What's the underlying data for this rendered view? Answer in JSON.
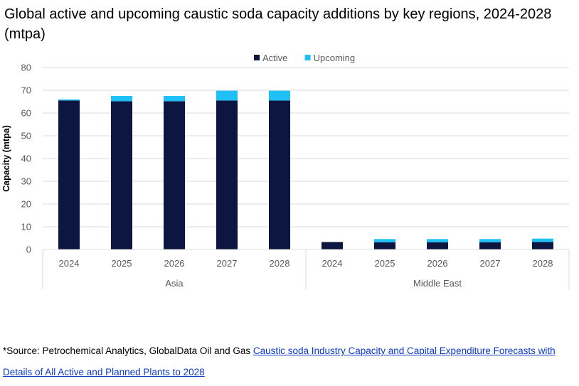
{
  "title": "Global active and upcoming caustic soda capacity additions by key regions, 2024-2028 (mtpa)",
  "source": {
    "prefix": "*Source: Petrochemical Analytics, GlobalData Oil and Gas ",
    "link_text": "Caustic soda Industry Capacity and Capital Expenditure Forecasts with Details of All Active and Planned Plants to 2028"
  },
  "chart_data": {
    "type": "bar",
    "stacked": true,
    "groups": [
      {
        "name": "Asia",
        "categories": [
          "2024",
          "2025",
          "2026",
          "2027",
          "2028"
        ]
      },
      {
        "name": "Middle East",
        "categories": [
          "2024",
          "2025",
          "2026",
          "2027",
          "2028"
        ]
      }
    ],
    "series": [
      {
        "name": "Active",
        "color": "#0c1640",
        "values": [
          65.5,
          65.2,
          65.2,
          65.5,
          65.5,
          3.3,
          3.2,
          3.2,
          3.2,
          3.3
        ]
      },
      {
        "name": "Upcoming",
        "color": "#1ec0f5",
        "values": [
          0.5,
          2.3,
          2.3,
          4.3,
          4.3,
          0.0,
          1.4,
          1.4,
          1.4,
          1.5
        ]
      }
    ],
    "ylabel": "Capacity (mtpa)",
    "xlabel": "",
    "ylim": [
      0,
      80
    ],
    "yticks": [
      0,
      10,
      20,
      30,
      40,
      50,
      60,
      70,
      80
    ],
    "grid": true,
    "legend_position": "top-center"
  }
}
